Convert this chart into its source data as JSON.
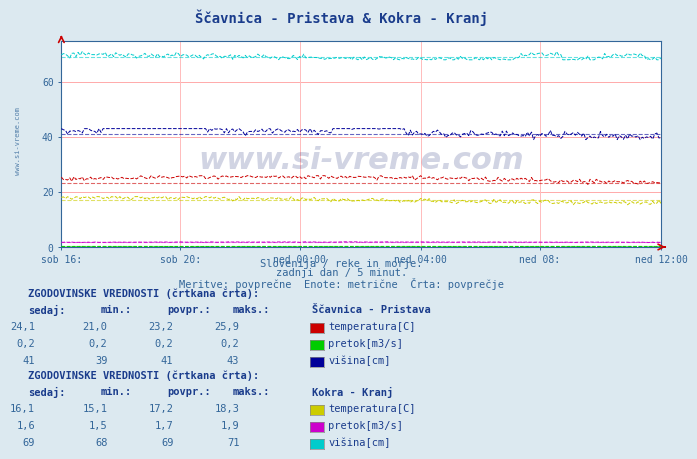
{
  "title": "Ščavnica - Pristava & Kokra - Kranj",
  "bg_color": "#dce9f0",
  "plot_bg_color": "#ffffff",
  "subtitle_lines": [
    "Slovenija / reke in morje.",
    "zadnji dan / 5 minut.",
    "Meritve: povprečne  Enote: metrične  Črta: povprečje"
  ],
  "xlabel_ticks": [
    "sob 16:",
    "sob 20:",
    "ned 00:00",
    "ned 04:00",
    "ned 08:",
    "ned 12:00"
  ],
  "ylim": [
    0,
    75
  ],
  "yticks": [
    0,
    20,
    40,
    60
  ],
  "n_points": 288,
  "watermark": "www.si-vreme.com",
  "grid_h_color": "#ffaaaa",
  "grid_v_color": "#ffbbbb",
  "title_color": "#1a3c8c",
  "text_color": "#336699",
  "label_bold_color": "#1a3c8c",
  "series": {
    "scavnica_temp": {
      "color": "#cc0000",
      "avg": 23.2,
      "min": 21.0,
      "max": 25.9,
      "current": 24.1
    },
    "scavnica_pretok": {
      "color": "#00cc00",
      "avg": 0.2,
      "min": 0.2,
      "max": 0.2,
      "current": 0.2
    },
    "scavnica_visina": {
      "color": "#000099",
      "avg": 41,
      "min": 39,
      "max": 43,
      "current": 41
    },
    "kokra_temp": {
      "color": "#cccc00",
      "avg": 17.2,
      "min": 15.1,
      "max": 18.3,
      "current": 16.1
    },
    "kokra_pretok": {
      "color": "#cc00cc",
      "avg": 1.7,
      "min": 1.5,
      "max": 1.9,
      "current": 1.6
    },
    "kokra_visina": {
      "color": "#00cccc",
      "avg": 69,
      "min": 68,
      "max": 71,
      "current": 69
    }
  },
  "table1_station": "Ščavnica - Pristava",
  "table1_rows": [
    [
      "24,1",
      "21,0",
      "23,2",
      "25,9",
      "#cc0000",
      "temperatura[C]"
    ],
    [
      "0,2",
      "0,2",
      "0,2",
      "0,2",
      "#00cc00",
      "pretok[m3/s]"
    ],
    [
      "41",
      "39",
      "41",
      "43",
      "#000099",
      "višina[cm]"
    ]
  ],
  "table2_station": "Kokra - Kranj",
  "table2_rows": [
    [
      "16,1",
      "15,1",
      "17,2",
      "18,3",
      "#cccc00",
      "temperatura[C]"
    ],
    [
      "1,6",
      "1,5",
      "1,7",
      "1,9",
      "#cc00cc",
      "pretok[m3/s]"
    ],
    [
      "69",
      "68",
      "69",
      "71",
      "#00cccc",
      "višina[cm]"
    ]
  ]
}
